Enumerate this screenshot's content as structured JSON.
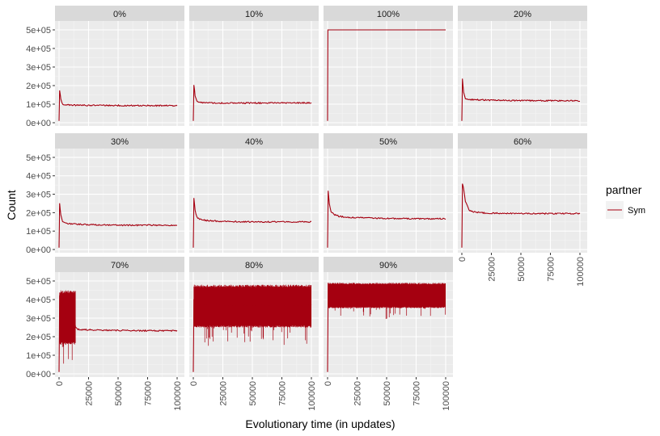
{
  "chart_data": {
    "type": "line",
    "xlabel": "Evolutionary time (in updates)",
    "ylabel": "Count",
    "xlim": [
      0,
      100000
    ],
    "ylim": [
      0,
      500000
    ],
    "x_ticks": [
      0,
      25000,
      50000,
      75000,
      100000
    ],
    "x_tick_labels": [
      "0",
      "25000",
      "50000",
      "75000",
      "100000"
    ],
    "y_ticks": [
      0,
      100000,
      200000,
      300000,
      400000,
      500000
    ],
    "y_tick_labels": [
      "0e+00",
      "1e+05",
      "2e+05",
      "3e+05",
      "4e+05",
      "5e+05"
    ],
    "grid": true,
    "legend": {
      "title": "partner",
      "position": "right",
      "entries": [
        "Sym"
      ]
    },
    "series_color": "#a50010",
    "panel_background": "#ebebeb",
    "strip_background": "#d9d9d9",
    "panels": [
      {
        "label": "0%",
        "x": [
          0,
          500,
          1500,
          3000,
          6000,
          10000,
          20000,
          40000,
          60000,
          80000,
          100000
        ],
        "y": [
          10000,
          175000,
          125000,
          100000,
          96000,
          95000,
          94000,
          93000,
          93000,
          92000,
          92000
        ]
      },
      {
        "label": "10%",
        "x": [
          0,
          500,
          1500,
          3000,
          6000,
          10000,
          20000,
          40000,
          60000,
          80000,
          100000
        ],
        "y": [
          10000,
          205000,
          145000,
          115000,
          108000,
          107000,
          106000,
          106000,
          106000,
          107000,
          107000
        ]
      },
      {
        "label": "100%",
        "x": [
          0,
          300,
          100000
        ],
        "y": [
          10000,
          500000,
          500000
        ]
      },
      {
        "label": "20%",
        "x": [
          0,
          500,
          1500,
          3000,
          6000,
          10000,
          20000,
          40000,
          60000,
          80000,
          100000
        ],
        "y": [
          10000,
          235000,
          165000,
          130000,
          125000,
          124000,
          122000,
          120000,
          119000,
          119000,
          118000
        ]
      },
      {
        "label": "30%",
        "x": [
          0,
          500,
          1500,
          3000,
          6000,
          10000,
          20000,
          40000,
          60000,
          80000,
          100000
        ],
        "y": [
          10000,
          250000,
          185000,
          150000,
          142000,
          139000,
          136000,
          133000,
          132000,
          132000,
          131000
        ]
      },
      {
        "label": "40%",
        "x": [
          0,
          500,
          1500,
          3000,
          6000,
          10000,
          20000,
          40000,
          60000,
          80000,
          100000
        ],
        "y": [
          10000,
          280000,
          215000,
          175000,
          163000,
          158000,
          154000,
          151000,
          150000,
          150000,
          150000
        ]
      },
      {
        "label": "50%",
        "x": [
          0,
          500,
          1500,
          3000,
          6000,
          10000,
          20000,
          40000,
          60000,
          80000,
          100000
        ],
        "y": [
          10000,
          320000,
          245000,
          205000,
          188000,
          180000,
          174000,
          170000,
          168000,
          167000,
          167000
        ]
      },
      {
        "label": "60%",
        "x": [
          0,
          500,
          1500,
          3000,
          6000,
          10000,
          20000,
          40000,
          60000,
          80000,
          100000
        ],
        "y": [
          10000,
          360000,
          330000,
          260000,
          215000,
          205000,
          198000,
          196000,
          195000,
          195000,
          195000
        ]
      },
      {
        "label": "70%",
        "x": [
          0,
          500,
          1500,
          3000,
          6000,
          10000,
          14000,
          16000,
          20000,
          40000,
          60000,
          80000,
          100000
        ],
        "y": [
          10000,
          420000,
          330000,
          410000,
          300000,
          440000,
          250000,
          240000,
          238000,
          235000,
          233000,
          232000,
          232000
        ],
        "band": {
          "x": [
            500,
            14000
          ],
          "low": 170000,
          "high": 450000
        }
      },
      {
        "label": "80%",
        "x": [
          0,
          500,
          2000,
          10000,
          30000,
          50000,
          70000,
          100000
        ],
        "y": [
          10000,
          400000,
          370000,
          375000,
          372000,
          370000,
          372000,
          370000
        ],
        "band": {
          "x": [
            500,
            100000
          ],
          "low": 260000,
          "high": 480000
        }
      },
      {
        "label": "90%",
        "x": [
          0,
          500,
          2000,
          5000,
          10000,
          20000,
          40000,
          100000
        ],
        "y": [
          10000,
          490000,
          440000,
          410000,
          395000,
          385000,
          375000,
          372000
        ],
        "band": {
          "x": [
            500,
            100000
          ],
          "low": 360000,
          "high": 490000
        }
      }
    ]
  }
}
